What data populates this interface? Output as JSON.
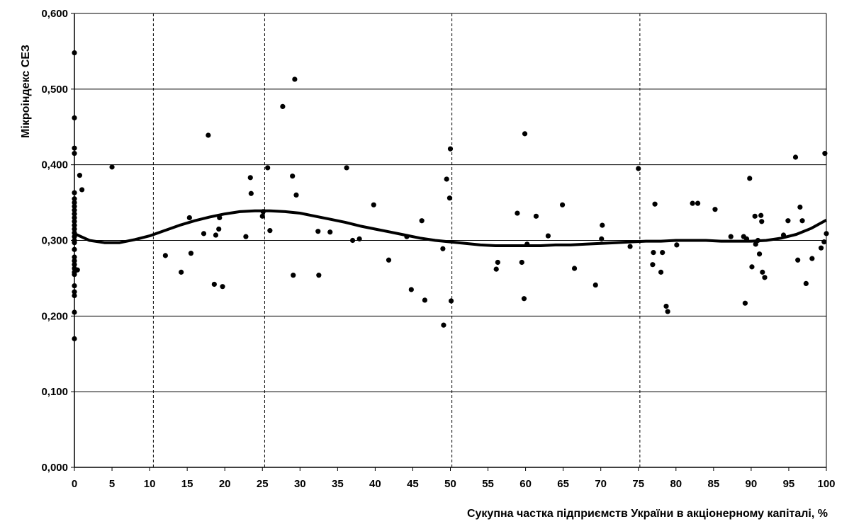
{
  "chart_data": {
    "type": "scatter",
    "xlabel": "Сукупна частка підприємств України в акціонерному капіталі, %",
    "ylabel": "Мікроіндекс СЕЗ",
    "xlim": [
      0,
      100
    ],
    "ylim": [
      0,
      0.6
    ],
    "x_ticks": [
      0,
      5,
      10,
      15,
      20,
      25,
      30,
      35,
      40,
      45,
      50,
      55,
      60,
      65,
      70,
      75,
      80,
      85,
      90,
      95,
      100
    ],
    "x_tick_labels": [
      "0",
      "5",
      "10",
      "15",
      "20",
      "25",
      "30",
      "35",
      "40",
      "45",
      "50",
      "55",
      "60",
      "65",
      "70",
      "75",
      "80",
      "85",
      "90",
      "95",
      "100"
    ],
    "y_ticks": [
      0,
      0.1,
      0.2,
      0.3,
      0.4,
      0.5,
      0.6
    ],
    "y_tick_labels": [
      "0,000",
      "0,100",
      "0,200",
      "0,300",
      "0,400",
      "0,500",
      "0,600"
    ],
    "grid": {
      "horizontal": true,
      "vertical_dashed_at": [
        10.5,
        25.3,
        50.2,
        75.2
      ]
    },
    "legend": "none",
    "series": [
      {
        "points": [
          [
            0,
            0.548
          ],
          [
            0,
            0.462
          ],
          [
            0,
            0.422
          ],
          [
            0,
            0.415
          ],
          [
            0,
            0.363
          ],
          [
            0,
            0.355
          ],
          [
            0,
            0.35
          ],
          [
            0,
            0.345
          ],
          [
            0,
            0.34
          ],
          [
            0,
            0.335
          ],
          [
            0,
            0.33
          ],
          [
            0,
            0.325
          ],
          [
            0,
            0.32
          ],
          [
            0,
            0.315
          ],
          [
            0,
            0.31
          ],
          [
            0,
            0.305
          ],
          [
            0,
            0.3
          ],
          [
            0,
            0.297
          ],
          [
            0,
            0.288
          ],
          [
            0,
            0.278
          ],
          [
            0,
            0.273
          ],
          [
            0,
            0.268
          ],
          [
            0,
            0.263
          ],
          [
            0,
            0.258
          ],
          [
            0,
            0.255
          ],
          [
            0,
            0.24
          ],
          [
            0,
            0.232
          ],
          [
            0,
            0.227
          ],
          [
            0,
            0.205
          ],
          [
            0,
            0.17
          ],
          [
            0.4,
            0.261
          ],
          [
            0.7,
            0.386
          ],
          [
            1,
            0.367
          ],
          [
            5,
            0.397
          ],
          [
            12.1,
            0.28
          ],
          [
            14.2,
            0.258
          ],
          [
            15.3,
            0.33
          ],
          [
            15.5,
            0.283
          ],
          [
            17.2,
            0.309
          ],
          [
            17.8,
            0.439
          ],
          [
            18.6,
            0.242
          ],
          [
            18.8,
            0.307
          ],
          [
            19.2,
            0.315
          ],
          [
            19.3,
            0.33
          ],
          [
            19.7,
            0.239
          ],
          [
            22.8,
            0.305
          ],
          [
            23.4,
            0.383
          ],
          [
            23.5,
            0.362
          ],
          [
            25,
            0.332
          ],
          [
            25.1,
            0.338
          ],
          [
            25.7,
            0.396
          ],
          [
            26,
            0.313
          ],
          [
            27.7,
            0.477
          ],
          [
            29,
            0.385
          ],
          [
            29.1,
            0.254
          ],
          [
            29.3,
            0.513
          ],
          [
            29.5,
            0.36
          ],
          [
            32.4,
            0.312
          ],
          [
            32.5,
            0.254
          ],
          [
            34,
            0.311
          ],
          [
            36.2,
            0.396
          ],
          [
            37,
            0.3
          ],
          [
            37.9,
            0.302
          ],
          [
            39.8,
            0.347
          ],
          [
            41.8,
            0.274
          ],
          [
            44.2,
            0.305
          ],
          [
            44.8,
            0.235
          ],
          [
            46.2,
            0.326
          ],
          [
            46.6,
            0.221
          ],
          [
            49,
            0.289
          ],
          [
            49.1,
            0.188
          ],
          [
            49.5,
            0.381
          ],
          [
            49.9,
            0.356
          ],
          [
            50,
            0.421
          ],
          [
            50.1,
            0.22
          ],
          [
            56.1,
            0.262
          ],
          [
            56.3,
            0.271
          ],
          [
            58.9,
            0.336
          ],
          [
            59.5,
            0.271
          ],
          [
            59.8,
            0.223
          ],
          [
            59.9,
            0.441
          ],
          [
            60.2,
            0.295
          ],
          [
            61.4,
            0.332
          ],
          [
            63,
            0.306
          ],
          [
            64.9,
            0.347
          ],
          [
            66.5,
            0.263
          ],
          [
            69.3,
            0.241
          ],
          [
            70.1,
            0.302
          ],
          [
            70.2,
            0.32
          ],
          [
            73.9,
            0.292
          ],
          [
            75,
            0.395
          ],
          [
            76.9,
            0.268
          ],
          [
            77,
            0.284
          ],
          [
            77.2,
            0.348
          ],
          [
            78,
            0.258
          ],
          [
            78.2,
            0.284
          ],
          [
            78.7,
            0.213
          ],
          [
            78.9,
            0.206
          ],
          [
            80.1,
            0.294
          ],
          [
            82.2,
            0.349
          ],
          [
            82.9,
            0.349
          ],
          [
            85.2,
            0.341
          ],
          [
            87.3,
            0.305
          ],
          [
            89,
            0.305
          ],
          [
            89.2,
            0.217
          ],
          [
            89.4,
            0.302
          ],
          [
            89.8,
            0.382
          ],
          [
            90.1,
            0.265
          ],
          [
            90.5,
            0.332
          ],
          [
            90.6,
            0.295
          ],
          [
            90.9,
            0.3
          ],
          [
            91.1,
            0.282
          ],
          [
            91.3,
            0.333
          ],
          [
            91.4,
            0.325
          ],
          [
            91.5,
            0.258
          ],
          [
            91.8,
            0.251
          ],
          [
            94.3,
            0.307
          ],
          [
            94.9,
            0.326
          ],
          [
            95.9,
            0.41
          ],
          [
            96.2,
            0.274
          ],
          [
            96.5,
            0.344
          ],
          [
            96.8,
            0.326
          ],
          [
            97.3,
            0.243
          ],
          [
            98.1,
            0.276
          ],
          [
            99.3,
            0.29
          ],
          [
            99.7,
            0.298
          ],
          [
            99.8,
            0.415
          ],
          [
            100,
            0.309
          ]
        ],
        "trend": [
          [
            0,
            0.309
          ],
          [
            2,
            0.3
          ],
          [
            4,
            0.297
          ],
          [
            6,
            0.297
          ],
          [
            8,
            0.301
          ],
          [
            10,
            0.306
          ],
          [
            12,
            0.313
          ],
          [
            14,
            0.32
          ],
          [
            16,
            0.326
          ],
          [
            18,
            0.331
          ],
          [
            20,
            0.335
          ],
          [
            22,
            0.338
          ],
          [
            24,
            0.339
          ],
          [
            26,
            0.339
          ],
          [
            28,
            0.338
          ],
          [
            30,
            0.336
          ],
          [
            32,
            0.332
          ],
          [
            34,
            0.328
          ],
          [
            36,
            0.324
          ],
          [
            38,
            0.319
          ],
          [
            40,
            0.315
          ],
          [
            42,
            0.311
          ],
          [
            44,
            0.307
          ],
          [
            46,
            0.303
          ],
          [
            48,
            0.3
          ],
          [
            50,
            0.298
          ],
          [
            52,
            0.296
          ],
          [
            54,
            0.294
          ],
          [
            56,
            0.293
          ],
          [
            58,
            0.293
          ],
          [
            60,
            0.293
          ],
          [
            62,
            0.293
          ],
          [
            64,
            0.294
          ],
          [
            66,
            0.294
          ],
          [
            68,
            0.295
          ],
          [
            70,
            0.296
          ],
          [
            72,
            0.297
          ],
          [
            74,
            0.298
          ],
          [
            76,
            0.299
          ],
          [
            78,
            0.299
          ],
          [
            80,
            0.3
          ],
          [
            82,
            0.3
          ],
          [
            84,
            0.3
          ],
          [
            86,
            0.299
          ],
          [
            88,
            0.299
          ],
          [
            90,
            0.299
          ],
          [
            92,
            0.3
          ],
          [
            94,
            0.303
          ],
          [
            96,
            0.308
          ],
          [
            98,
            0.316
          ],
          [
            100,
            0.327
          ]
        ]
      }
    ]
  }
}
